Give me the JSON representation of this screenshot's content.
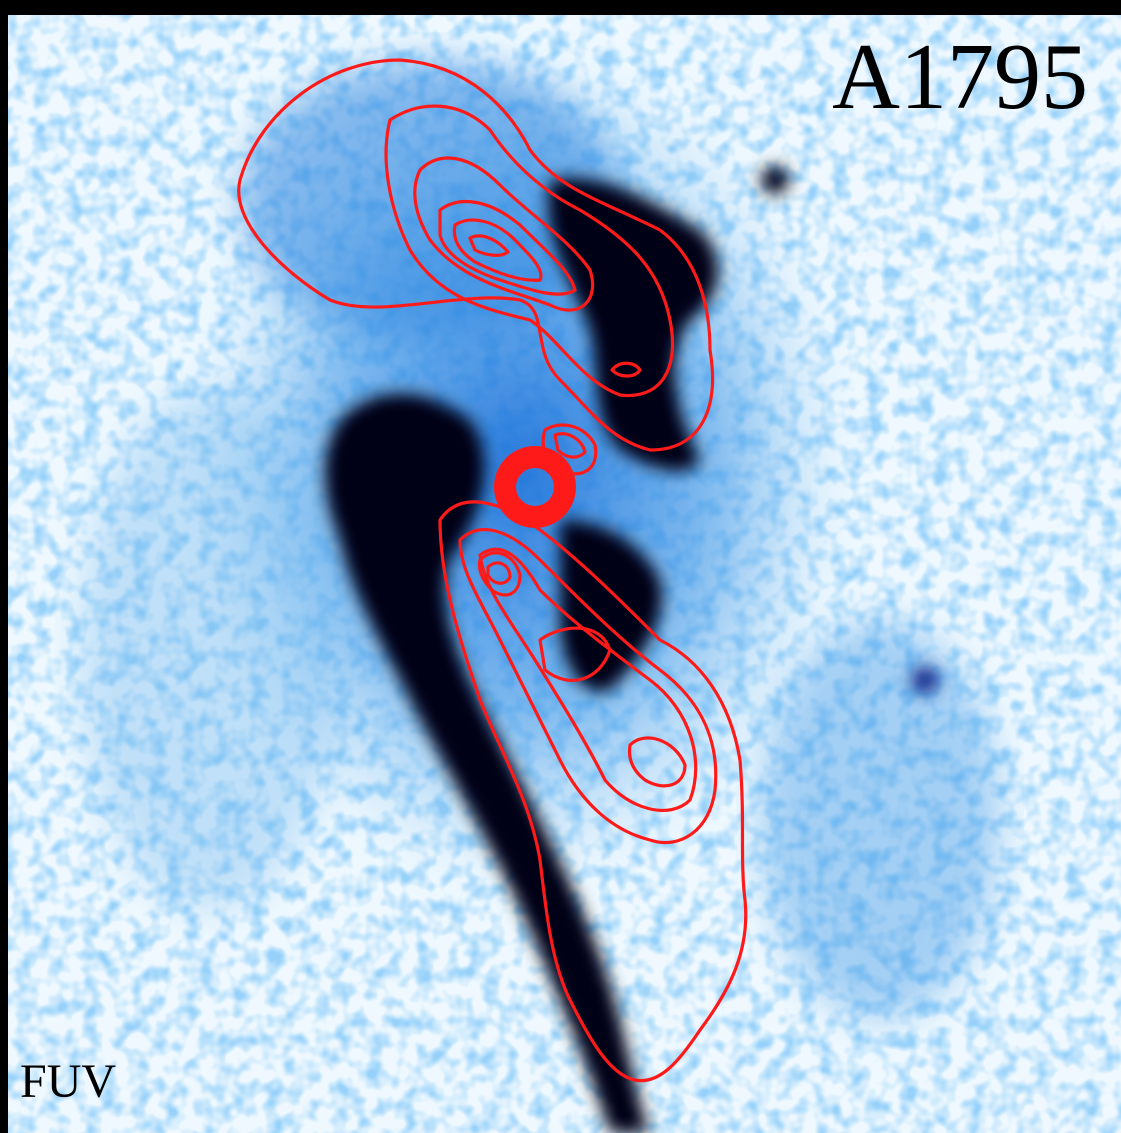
{
  "title": "A1795",
  "band": "FUV"
}
